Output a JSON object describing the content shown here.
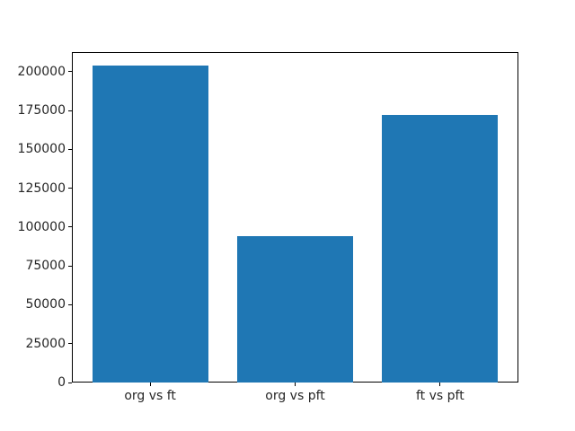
{
  "figure": {
    "background": "#ffffff",
    "spine_color": "#000000",
    "tick_text_color": "#262626"
  },
  "chart_data": {
    "type": "bar",
    "categories": [
      "org vs ft",
      "org vs pft",
      "ft vs pft"
    ],
    "values": [
      204000,
      94000,
      172000
    ],
    "series_color": "#1f77b4",
    "title": "",
    "xlabel": "",
    "ylabel": "",
    "ylim": [
      0,
      212700
    ],
    "xlim": [
      -0.54,
      2.54
    ],
    "bar_width": 0.8,
    "yticks": [
      0,
      25000,
      50000,
      75000,
      100000,
      125000,
      150000,
      175000,
      200000
    ],
    "grid": false,
    "legend": false
  }
}
